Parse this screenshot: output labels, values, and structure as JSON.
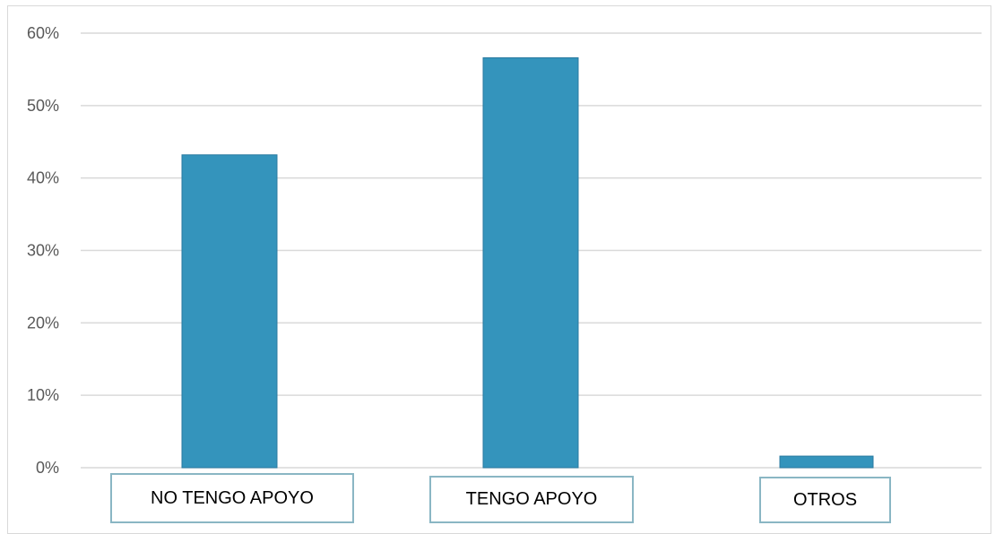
{
  "chart_data": {
    "type": "bar",
    "categories": [
      "NO TENGO APOYO",
      "TENGO APOYO",
      "OTROS"
    ],
    "values": [
      43.2,
      56.6,
      1.6
    ],
    "ylim": [
      0,
      60
    ],
    "y_ticks": [
      "0%",
      "10%",
      "20%",
      "30%",
      "40%",
      "50%",
      "60%"
    ],
    "grid": true,
    "title": "",
    "xlabel": "",
    "ylabel": ""
  },
  "colors": {
    "bar": "#3494bc",
    "bar_edge": "#2a7aa0",
    "grid": "#d9d9d9",
    "category_box_border": "#8ab6c4"
  }
}
